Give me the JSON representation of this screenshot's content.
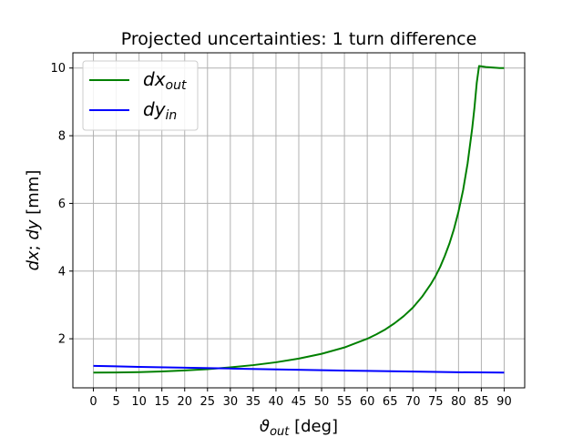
{
  "chart_data": {
    "type": "line",
    "title": "Projected uncertainties: 1 turn difference",
    "xlabel": "ϑ_out [deg]",
    "xlabel_main": "ϑ",
    "xlabel_sub": "out",
    "xlabel_unit": " [deg]",
    "ylabel": "dx; dy [mm]",
    "ylabel_parts": {
      "a": "dx",
      "sep": "; ",
      "b": "dy",
      "unit": " [mm]"
    },
    "xlim": [
      -4.5,
      94.5
    ],
    "ylim": [
      0.55,
      10.45
    ],
    "xticks": [
      0,
      5,
      10,
      15,
      20,
      25,
      30,
      35,
      40,
      45,
      50,
      55,
      60,
      65,
      70,
      75,
      80,
      85,
      90
    ],
    "yticks": [
      2,
      4,
      6,
      8,
      10
    ],
    "grid": true,
    "legend_position": "top-left",
    "series": [
      {
        "name": "dx_out",
        "legend_main": "dx",
        "legend_sub": "out",
        "color": "#008000",
        "x": [
          0,
          5,
          10,
          15,
          20,
          25,
          30,
          35,
          40,
          45,
          50,
          55,
          60,
          62,
          64,
          66,
          68,
          70,
          72,
          74,
          75,
          76,
          77,
          78,
          79,
          80,
          81,
          82,
          83,
          83.5,
          84,
          84.5,
          85,
          86,
          87,
          88,
          89,
          90
        ],
        "y": [
          1.0,
          1.004,
          1.015,
          1.035,
          1.064,
          1.103,
          1.155,
          1.221,
          1.305,
          1.414,
          1.556,
          1.743,
          2.0,
          2.13,
          2.28,
          2.46,
          2.67,
          2.92,
          3.24,
          3.63,
          3.86,
          4.13,
          4.45,
          4.81,
          5.24,
          5.76,
          6.39,
          7.19,
          8.22,
          8.84,
          9.57,
          10.06,
          10.05,
          10.03,
          10.02,
          10.01,
          10.0,
          10.0
        ]
      },
      {
        "name": "dy_in",
        "legend_main": "dy",
        "legend_sub": "in",
        "color": "#0000ff",
        "x": [
          0,
          10,
          20,
          30,
          40,
          50,
          60,
          70,
          80,
          90
        ],
        "y": [
          1.2,
          1.17,
          1.145,
          1.12,
          1.095,
          1.07,
          1.05,
          1.03,
          1.01,
          1.0
        ]
      }
    ]
  }
}
